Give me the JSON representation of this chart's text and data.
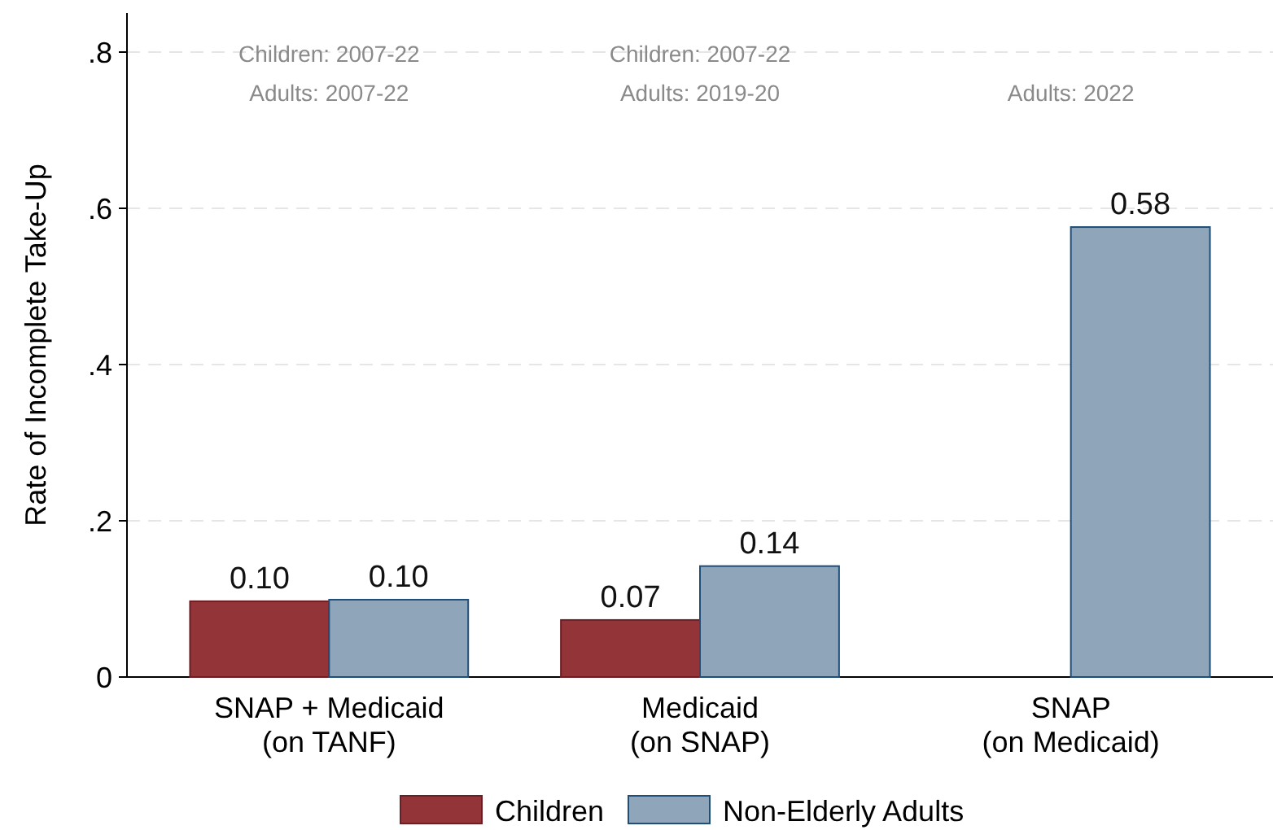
{
  "chart_data": {
    "type": "bar",
    "ylabel": "Rate of Incomplete Take-Up",
    "categories": [
      "SNAP + Medicaid (on TANF)",
      "Medicaid (on SNAP)",
      "SNAP (on Medicaid)"
    ],
    "series": [
      {
        "name": "Children",
        "color": "#933439",
        "values": [
          0.097,
          0.073,
          null
        ],
        "value_labels": [
          "0.10",
          "0.07",
          null
        ]
      },
      {
        "name": "Non-Elderly Adults",
        "color": "#8ea5ba",
        "values": [
          0.099,
          0.142,
          0.576
        ],
        "value_labels": [
          "0.10",
          "0.14",
          "0.58"
        ]
      }
    ],
    "ylim": [
      0,
      0.85
    ],
    "yticks": [
      {
        "value": 0,
        "label": "0"
      },
      {
        "value": 0.2,
        "label": ".2"
      },
      {
        "value": 0.4,
        "label": ".4"
      },
      {
        "value": 0.6,
        "label": ".6"
      },
      {
        "value": 0.8,
        "label": ".8"
      }
    ],
    "grid": "y",
    "legend": "bottom",
    "annotations": [
      "Children: 2007-22",
      "Adults: 2007-22",
      "Children: 2007-22",
      "Adults: 2019-20",
      "Adults: 2022"
    ]
  }
}
